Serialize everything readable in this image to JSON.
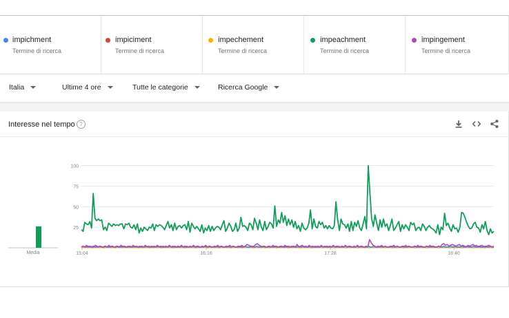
{
  "terms": [
    {
      "name": "impichment",
      "sub": "Termine di ricerca",
      "color": "#4285f4"
    },
    {
      "name": "impiciment",
      "sub": "Termine di ricerca",
      "color": "#db4437"
    },
    {
      "name": "impechement",
      "sub": "Termine di ricerca",
      "color": "#f4b400"
    },
    {
      "name": "impeachment",
      "sub": "Termine di ricerca",
      "color": "#0f9d58"
    },
    {
      "name": "impingement",
      "sub": "Termine di ricerca",
      "color": "#ab47bc"
    }
  ],
  "filters": {
    "region": "Italia",
    "time": "Ultime 4 ore",
    "category": "Tutte le categorie",
    "property": "Ricerca Google"
  },
  "card": {
    "title": "Interesse nel tempo",
    "help_glyph": "?",
    "icons": [
      "download-icon",
      "embed-icon",
      "share-icon"
    ],
    "average_label": "Media"
  },
  "chart_data": {
    "type": "line",
    "yticks": [
      25,
      50,
      75,
      100
    ],
    "ylim": [
      0,
      100
    ],
    "xticks": [
      "15:04",
      "16:16",
      "17:28",
      "18:40"
    ],
    "grid": true,
    "averages": [
      {
        "series": "impeachment",
        "value": 26,
        "color": "#0f9d58"
      }
    ],
    "series": [
      {
        "name": "impeachment",
        "color": "#0f9d58",
        "values": [
          22,
          20,
          31,
          29,
          28,
          32,
          24,
          66,
          36,
          33,
          35,
          33,
          34,
          22,
          25,
          21,
          30,
          28,
          26,
          29,
          27,
          28,
          27,
          29,
          29,
          23,
          29,
          28,
          30,
          25,
          24,
          28,
          22,
          29,
          18,
          24,
          20,
          25,
          23,
          21,
          25,
          24,
          29,
          21,
          28,
          26,
          28,
          27,
          25,
          22,
          27,
          32,
          24,
          28,
          21,
          30,
          22,
          26,
          27,
          24,
          27,
          28,
          22,
          32,
          19,
          30,
          26,
          23,
          26,
          23,
          20,
          28,
          18,
          24,
          21,
          27,
          20,
          26,
          21,
          24,
          26,
          25,
          22,
          28,
          33,
          20,
          24,
          30,
          26,
          20,
          22,
          30,
          20,
          24,
          37,
          26,
          27,
          25,
          21,
          30,
          28,
          22,
          36,
          30,
          22,
          34,
          25,
          21,
          32,
          22,
          26,
          31,
          29,
          24,
          51,
          26,
          34,
          30,
          43,
          31,
          39,
          27,
          35,
          28,
          34,
          25,
          32,
          23,
          27,
          20,
          30,
          24,
          22,
          24,
          30,
          46,
          23,
          35,
          26,
          24,
          32,
          28,
          31,
          24,
          27,
          23,
          27,
          24,
          23,
          27,
          56,
          34,
          21,
          35,
          29,
          28,
          24,
          29,
          20,
          32,
          21,
          31,
          26,
          33,
          24,
          21,
          29,
          38,
          23,
          100,
          66,
          36,
          26,
          40,
          30,
          21,
          34,
          25,
          35,
          26,
          29,
          21,
          27,
          35,
          21,
          24,
          28,
          32,
          20,
          28,
          23,
          28,
          25,
          21,
          31,
          28,
          30,
          21,
          24,
          25,
          21,
          29,
          26,
          21,
          25,
          27,
          24,
          23,
          21,
          18,
          28,
          16,
          25,
          22,
          42,
          27,
          30,
          24,
          20,
          28,
          23,
          24,
          19,
          25,
          43,
          42,
          37,
          31,
          26,
          23,
          24,
          29,
          31,
          25,
          24,
          19,
          28,
          23,
          32,
          21,
          16,
          23,
          18,
          20
        ]
      },
      {
        "name": "impichment",
        "color": "#4285f4",
        "values": [
          1,
          2,
          1,
          1,
          2,
          1,
          1,
          2,
          1,
          1,
          1,
          2,
          1,
          1,
          2,
          1,
          1,
          1,
          2,
          1,
          1,
          2,
          1,
          1,
          1,
          2,
          1,
          1,
          2,
          1,
          1,
          1,
          2,
          1,
          1,
          2,
          1,
          1,
          1,
          2,
          1,
          1,
          2,
          1,
          1,
          1,
          2,
          1,
          1,
          2,
          1,
          1,
          1,
          2,
          1,
          1,
          2,
          1,
          1,
          1,
          2,
          1,
          1,
          2,
          1,
          1,
          1,
          2,
          1,
          1,
          2,
          1,
          1,
          1,
          2,
          1,
          1,
          2,
          1,
          1,
          1,
          2,
          1,
          1,
          2,
          1,
          1,
          1,
          2,
          1,
          1,
          2,
          1,
          1,
          1,
          2,
          1,
          1,
          2,
          1,
          1,
          1,
          2,
          1,
          1,
          2,
          1,
          1,
          1,
          2,
          1,
          1,
          2,
          1,
          1,
          1,
          2,
          1,
          1,
          2,
          1,
          1,
          1,
          2,
          1,
          1,
          2,
          1,
          1,
          1,
          2,
          1,
          1,
          2,
          1,
          1,
          1,
          2,
          1,
          1,
          2,
          1,
          1,
          1,
          2,
          1,
          1,
          2,
          1,
          1,
          1,
          2,
          1,
          1,
          2,
          1,
          1,
          1,
          2,
          1,
          1,
          2,
          1,
          1,
          1,
          2,
          1,
          1,
          2,
          1,
          1,
          1,
          2,
          1,
          1,
          2,
          1,
          1,
          1,
          2,
          1,
          1,
          2,
          1,
          1,
          1,
          2,
          1,
          1,
          2,
          1,
          1,
          1,
          2,
          1,
          1,
          2,
          1,
          1,
          1,
          2,
          1,
          1,
          2,
          1,
          1,
          1,
          2,
          1,
          1,
          2,
          1,
          1,
          1,
          2,
          1,
          1,
          2,
          1,
          1,
          1,
          2,
          1,
          1,
          2,
          1,
          1,
          1,
          2,
          1,
          1,
          2,
          1,
          1,
          1,
          2,
          1,
          1,
          2,
          1,
          1,
          1,
          2,
          1,
          1,
          2,
          1,
          1
        ]
      },
      {
        "name": "impechement",
        "color": "#f4b400",
        "values": [
          0,
          1,
          0,
          1,
          0,
          1,
          0,
          0,
          1,
          0,
          1,
          0,
          1,
          0,
          0,
          1,
          0,
          1,
          0,
          1,
          0,
          0,
          1,
          0,
          1,
          0,
          1,
          0,
          0,
          1,
          0,
          1,
          0,
          1,
          0,
          0,
          1,
          0,
          1,
          0,
          1,
          0,
          0,
          1,
          0,
          1,
          0,
          1,
          0,
          0,
          1,
          0,
          1,
          0,
          1,
          0,
          0,
          1,
          0,
          1,
          0,
          1,
          0,
          0,
          1,
          0,
          1,
          0,
          1,
          0,
          0,
          1,
          0,
          1,
          0,
          1,
          0,
          0,
          1,
          0,
          1,
          0,
          1,
          0,
          0,
          1,
          0,
          1,
          0,
          1,
          0,
          0,
          1,
          0,
          1,
          0,
          1,
          0,
          0,
          1,
          0,
          1,
          0,
          1,
          0,
          0,
          1,
          0,
          1,
          0,
          1,
          0,
          0,
          1,
          0,
          1,
          0,
          1,
          0,
          0,
          1,
          0,
          1,
          0,
          1,
          0,
          0,
          1,
          0,
          1,
          0,
          1,
          0,
          0,
          1,
          0,
          1,
          0,
          1,
          0,
          0,
          1,
          0,
          1,
          0,
          1,
          0,
          0,
          1,
          0,
          1,
          0,
          1,
          0,
          0,
          1,
          0,
          1,
          0,
          1,
          0,
          0,
          1,
          0,
          1,
          0,
          1,
          0,
          0,
          1,
          0,
          1,
          0,
          1,
          0,
          0,
          1,
          0,
          1,
          0,
          1,
          0,
          0,
          1,
          0,
          1,
          0,
          1,
          0,
          0,
          1,
          0,
          1,
          0,
          1,
          0,
          0,
          1,
          0,
          1,
          0,
          1,
          0,
          0,
          1,
          0,
          1,
          0,
          1,
          0,
          0,
          1,
          0,
          1,
          0,
          1,
          0,
          0,
          1,
          0,
          1,
          0,
          1,
          0,
          0,
          1,
          0,
          1,
          0,
          1,
          0,
          0,
          1,
          0,
          1,
          0,
          1,
          0,
          0,
          1,
          0,
          1,
          0,
          1,
          0,
          0,
          1,
          0,
          1,
          0,
          1
        ]
      },
      {
        "name": "impingement",
        "color": "#ab47bc",
        "values": [
          1,
          2,
          1,
          3,
          1,
          2,
          1,
          1,
          3,
          2,
          1,
          2,
          1,
          1,
          2,
          1,
          3,
          1,
          2,
          1,
          1,
          2,
          1,
          3,
          1,
          2,
          1,
          1,
          2,
          1,
          3,
          1,
          2,
          1,
          1,
          2,
          1,
          3,
          1,
          2,
          1,
          1,
          2,
          1,
          3,
          1,
          2,
          1,
          1,
          2,
          1,
          3,
          1,
          2,
          1,
          1,
          2,
          1,
          3,
          1,
          2,
          1,
          1,
          2,
          1,
          3,
          1,
          2,
          1,
          1,
          2,
          1,
          3,
          1,
          2,
          1,
          1,
          2,
          1,
          3,
          1,
          2,
          1,
          1,
          2,
          1,
          3,
          1,
          2,
          1,
          1,
          2,
          1,
          3,
          1,
          2,
          4,
          3,
          2,
          1,
          2,
          4,
          5,
          3,
          2,
          1,
          2,
          1,
          1,
          2,
          1,
          3,
          1,
          2,
          1,
          1,
          2,
          1,
          3,
          1,
          2,
          1,
          1,
          2,
          1,
          4,
          1,
          2,
          3,
          1,
          2,
          1,
          3,
          1,
          2,
          1,
          1,
          2,
          1,
          3,
          1,
          2,
          1,
          1,
          2,
          1,
          3,
          1,
          2,
          1,
          1,
          2,
          1,
          3,
          1,
          2,
          1,
          1,
          2,
          1,
          3,
          1,
          2,
          1,
          1,
          2,
          1,
          10,
          6,
          3,
          2,
          1,
          2,
          1,
          3,
          1,
          2,
          1,
          1,
          2,
          1,
          3,
          1,
          2,
          1,
          1,
          2,
          1,
          3,
          1,
          2,
          1,
          1,
          2,
          1,
          3,
          1,
          2,
          1,
          1,
          2,
          1,
          3,
          1,
          2,
          1,
          1,
          2,
          1,
          4,
          5,
          3,
          4,
          2,
          3,
          4,
          3,
          2,
          3,
          4,
          2,
          3,
          2,
          1,
          3,
          2,
          3,
          4,
          2,
          3,
          1,
          2,
          3,
          2,
          1,
          2,
          3,
          2,
          1,
          2
        ]
      }
    ]
  }
}
